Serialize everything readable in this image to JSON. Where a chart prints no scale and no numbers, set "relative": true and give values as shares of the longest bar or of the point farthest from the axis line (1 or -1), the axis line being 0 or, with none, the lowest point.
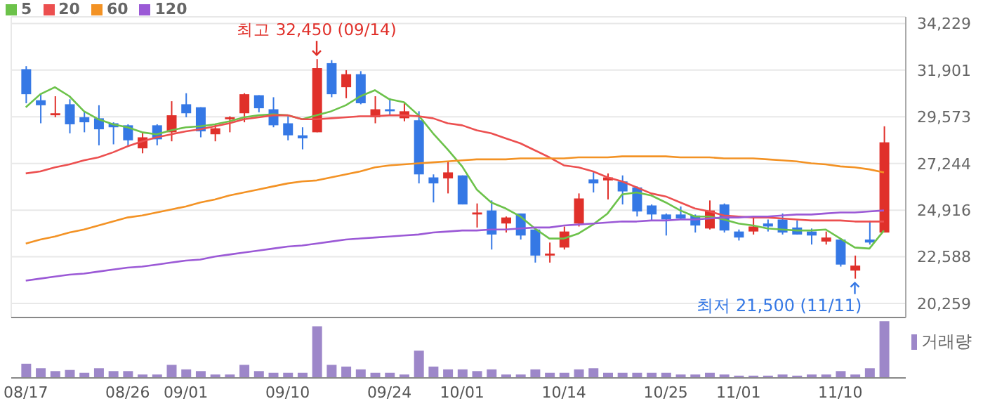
{
  "chart_data": [
    {
      "type": "candlestick",
      "categories": [
        "08/17",
        null,
        null,
        null,
        null,
        null,
        null,
        "08/26",
        null,
        null,
        null,
        "09/01",
        null,
        null,
        null,
        null,
        null,
        null,
        "09/10",
        null,
        null,
        null,
        null,
        null,
        null,
        "09/24",
        null,
        null,
        null,
        null,
        "10/01",
        null,
        null,
        null,
        null,
        null,
        null,
        "10/14",
        null,
        null,
        null,
        null,
        null,
        null,
        "10/25",
        null,
        null,
        null,
        null,
        "11/01",
        null,
        null,
        null,
        null,
        null,
        null,
        "11/10",
        null,
        null,
        null
      ],
      "ohlc": [
        [
          31950,
          32100,
          30250,
          30700
        ],
        [
          30400,
          30700,
          29250,
          30150
        ],
        [
          29650,
          30600,
          29550,
          29750
        ],
        [
          30200,
          30450,
          28750,
          29200
        ],
        [
          29550,
          29850,
          28800,
          29300
        ],
        [
          29500,
          30150,
          28150,
          28950
        ],
        [
          29250,
          29300,
          28200,
          29050
        ],
        [
          29150,
          29200,
          28150,
          28400
        ],
        [
          28000,
          28800,
          27750,
          28550
        ],
        [
          29150,
          29200,
          28150,
          28450
        ],
        [
          28800,
          30350,
          28350,
          29650
        ],
        [
          30200,
          30750,
          29550,
          29750
        ],
        [
          30050,
          30050,
          28550,
          28850
        ],
        [
          28700,
          29200,
          28350,
          29000
        ],
        [
          29450,
          29600,
          28800,
          29550
        ],
        [
          29750,
          30750,
          29300,
          30700
        ],
        [
          30650,
          30650,
          29800,
          30000
        ],
        [
          29950,
          30550,
          29050,
          29150
        ],
        [
          29250,
          29600,
          28400,
          28650
        ],
        [
          28650,
          29050,
          27950,
          28500
        ],
        [
          28800,
          32450,
          28800,
          32000
        ],
        [
          32250,
          32400,
          30550,
          30700
        ],
        [
          31050,
          31900,
          30500,
          31700
        ],
        [
          31700,
          31850,
          30200,
          30250
        ],
        [
          29550,
          30600,
          29250,
          29950
        ],
        [
          29950,
          30500,
          29650,
          29850
        ],
        [
          29500,
          30300,
          29350,
          29850
        ],
        [
          29400,
          29850,
          26250,
          26700
        ],
        [
          26550,
          26700,
          25300,
          26250
        ],
        [
          26500,
          27350,
          25750,
          26800
        ],
        [
          26650,
          26650,
          25200,
          25200
        ],
        [
          24700,
          25250,
          24050,
          24800
        ],
        [
          24900,
          25400,
          22950,
          23700
        ],
        [
          24250,
          24600,
          23800,
          24550
        ],
        [
          24750,
          24750,
          23450,
          23650
        ],
        [
          23950,
          23950,
          22300,
          22650
        ],
        [
          22650,
          23300,
          22300,
          22750
        ],
        [
          23050,
          24100,
          22950,
          23850
        ],
        [
          24250,
          25750,
          24100,
          25500
        ],
        [
          26450,
          26850,
          25800,
          26250
        ],
        [
          26400,
          26750,
          25450,
          26550
        ],
        [
          26350,
          26650,
          25200,
          25850
        ],
        [
          26050,
          26100,
          24600,
          24850
        ],
        [
          25150,
          25200,
          24400,
          24700
        ],
        [
          24700,
          24750,
          23650,
          24450
        ],
        [
          24700,
          25100,
          24450,
          24500
        ],
        [
          24650,
          24700,
          23800,
          24150
        ],
        [
          24000,
          25400,
          23950,
          24900
        ],
        [
          25200,
          25250,
          23800,
          23900
        ],
        [
          23850,
          23950,
          23400,
          23550
        ],
        [
          23850,
          24550,
          23700,
          24100
        ],
        [
          24250,
          24450,
          23850,
          24100
        ],
        [
          24450,
          24750,
          23700,
          23800
        ],
        [
          24050,
          24400,
          23700,
          23700
        ],
        [
          23850,
          24000,
          23200,
          23650
        ],
        [
          23350,
          23850,
          23200,
          23550
        ],
        [
          23450,
          23450,
          22100,
          22200
        ],
        [
          21900,
          22650,
          21500,
          22150
        ],
        [
          23450,
          24400,
          23200,
          23300
        ],
        [
          23800,
          29100,
          23800,
          28300
        ]
      ],
      "colors": [
        "#3578e5",
        "#3578e5",
        "#e0302a",
        "#3578e5",
        "#3578e5",
        "#3578e5",
        "#3578e5",
        "#3578e5",
        "#e0302a",
        "#3578e5",
        "#e0302a",
        "#3578e5",
        "#3578e5",
        "#e0302a",
        "#e0302a",
        "#e0302a",
        "#3578e5",
        "#3578e5",
        "#3578e5",
        "#3578e5",
        "#e0302a",
        "#3578e5",
        "#e0302a",
        "#3578e5",
        "#e0302a",
        "#3578e5",
        "#e0302a",
        "#3578e5",
        "#3578e5",
        "#e0302a",
        "#3578e5",
        "#e0302a",
        "#3578e5",
        "#e0302a",
        "#3578e5",
        "#3578e5",
        "#e0302a",
        "#e0302a",
        "#e0302a",
        "#3578e5",
        "#e0302a",
        "#3578e5",
        "#3578e5",
        "#3578e5",
        "#3578e5",
        "#3578e5",
        "#3578e5",
        "#e0302a",
        "#3578e5",
        "#3578e5",
        "#e0302a",
        "#3578e5",
        "#3578e5",
        "#3578e5",
        "#3578e5",
        "#e0302a",
        "#3578e5",
        "#e0302a",
        "#3578e5",
        "#e0302a"
      ],
      "series": [
        {
          "name": "5",
          "type": "line",
          "color": "#6cc24a",
          "values": [
            30050,
            30700,
            31050,
            30600,
            29850,
            29450,
            29200,
            29050,
            28800,
            28700,
            28900,
            29050,
            29100,
            29200,
            29350,
            29550,
            29650,
            29700,
            29650,
            29450,
            29650,
            29850,
            30150,
            30600,
            30900,
            30450,
            30300,
            29650,
            28750,
            27950,
            27100,
            25950,
            25300,
            25000,
            24600,
            24000,
            23500,
            23500,
            23750,
            24200,
            24750,
            25700,
            25800,
            25650,
            25300,
            24900,
            24600,
            24600,
            24450,
            24250,
            24150,
            24000,
            23950,
            23900,
            23900,
            23950,
            23500,
            23050,
            23000,
            23900
          ]
        },
        {
          "name": "20",
          "type": "line",
          "color": "#ec4f4f",
          "values": [
            26750,
            26850,
            27050,
            27200,
            27400,
            27550,
            27800,
            28100,
            28350,
            28550,
            28700,
            28850,
            28950,
            29100,
            29250,
            29450,
            29550,
            29650,
            29650,
            29450,
            29450,
            29500,
            29550,
            29600,
            29600,
            29650,
            29650,
            29600,
            29500,
            29250,
            29150,
            28900,
            28750,
            28500,
            28250,
            27900,
            27550,
            27150,
            27050,
            26850,
            26550,
            26350,
            26050,
            25750,
            25600,
            25300,
            25000,
            24850,
            24650,
            24600,
            24550,
            24550,
            24500,
            24450,
            24400,
            24400,
            24400,
            24350,
            24350,
            24350
          ]
        },
        {
          "name": "60",
          "type": "line",
          "color": "#f39224",
          "values": [
            23250,
            23450,
            23600,
            23800,
            23950,
            24150,
            24350,
            24550,
            24650,
            24800,
            24950,
            25100,
            25300,
            25450,
            25650,
            25800,
            25950,
            26100,
            26250,
            26350,
            26400,
            26550,
            26700,
            26850,
            27050,
            27150,
            27200,
            27250,
            27300,
            27350,
            27400,
            27450,
            27450,
            27450,
            27500,
            27500,
            27500,
            27500,
            27550,
            27550,
            27550,
            27600,
            27600,
            27600,
            27600,
            27550,
            27550,
            27550,
            27500,
            27500,
            27500,
            27450,
            27400,
            27350,
            27250,
            27200,
            27100,
            27050,
            26950,
            26800
          ]
        },
        {
          "name": "120",
          "type": "line",
          "color": "#9b59d6",
          "values": [
            21400,
            21500,
            21600,
            21700,
            21750,
            21850,
            21950,
            22050,
            22100,
            22200,
            22300,
            22400,
            22450,
            22600,
            22700,
            22800,
            22900,
            23000,
            23100,
            23150,
            23250,
            23350,
            23450,
            23500,
            23550,
            23600,
            23650,
            23700,
            23800,
            23850,
            23900,
            23900,
            23950,
            23950,
            24000,
            24050,
            24050,
            24150,
            24200,
            24250,
            24300,
            24350,
            24350,
            24400,
            24400,
            24450,
            24450,
            24500,
            24550,
            24550,
            24600,
            24600,
            24650,
            24700,
            24700,
            24750,
            24800,
            24800,
            24850,
            24900
          ]
        }
      ],
      "ylim": [
        19560,
        34560
      ],
      "yticks": [
        {
          "value": 20259,
          "label": "20,259"
        },
        {
          "value": 22588,
          "label": "22,588"
        },
        {
          "value": 24916,
          "label": "24,916"
        },
        {
          "value": 27244,
          "label": "27,244"
        },
        {
          "value": 29573,
          "label": "29,573"
        },
        {
          "value": 31901,
          "label": "31,901"
        },
        {
          "value": 34229,
          "label": "34,229"
        }
      ],
      "annotations": [
        "최고 32,450 (09/14)",
        "최저 21,500 (11/11)"
      ],
      "grid": true,
      "legend": "top left"
    },
    {
      "type": "bar",
      "relative": true,
      "categories": [
        null,
        null,
        null,
        null,
        null,
        null,
        null,
        null,
        null,
        null,
        null,
        null,
        null,
        null,
        null,
        null,
        null,
        null,
        null,
        null,
        null,
        null,
        null,
        null,
        null,
        null,
        null,
        null,
        null,
        null,
        null,
        null,
        null,
        null,
        null,
        null,
        null,
        null,
        null,
        null,
        null,
        null,
        null,
        null,
        null,
        null,
        null,
        null,
        null,
        null,
        null,
        null,
        null,
        null,
        null,
        null,
        null,
        null,
        null,
        null
      ],
      "series": [
        {
          "name": "거래량",
          "color": "#9d87c9",
          "values": [
            0.25,
            0.17,
            0.12,
            0.14,
            0.09,
            0.17,
            0.12,
            0.12,
            0.06,
            0.06,
            0.23,
            0.15,
            0.12,
            0.06,
            0.06,
            0.23,
            0.12,
            0.09,
            0.09,
            0.09,
            0.91,
            0.23,
            0.2,
            0.15,
            0.09,
            0.09,
            0.06,
            0.48,
            0.2,
            0.15,
            0.15,
            0.12,
            0.15,
            0.06,
            0.06,
            0.15,
            0.09,
            0.09,
            0.15,
            0.17,
            0.09,
            0.09,
            0.09,
            0.09,
            0.09,
            0.06,
            0.06,
            0.09,
            0.06,
            0.04,
            0.04,
            0.04,
            0.06,
            0.04,
            0.06,
            0.06,
            0.12,
            0.06,
            0.17,
            1
          ]
        }
      ],
      "legend": "top right"
    }
  ]
}
